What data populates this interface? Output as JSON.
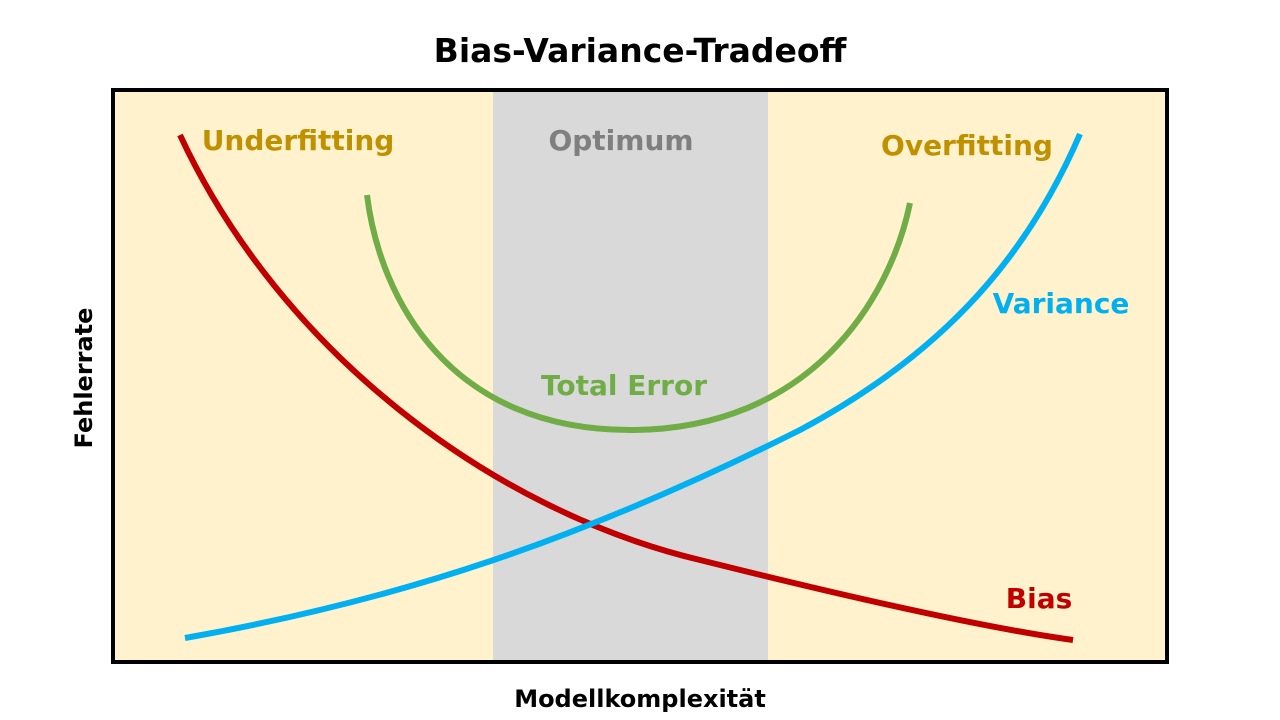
{
  "title": "Bias-Variance-Tradeoff",
  "x_axis_label": "Modellkomplexität",
  "y_axis_label": "Fehlerrate",
  "regions": [
    {
      "label": "Underfitting",
      "color": "#bf9000"
    },
    {
      "label": "Optimum",
      "color": "#7f7f7f"
    },
    {
      "label": "Overfitting",
      "color": "#bf9000"
    }
  ],
  "curves": {
    "bias": {
      "label": "Bias",
      "color": "#c00000"
    },
    "variance": {
      "label": "Variance",
      "color": "#00b0f0"
    },
    "total_error": {
      "label": "Total Error",
      "color": "#70ad47"
    }
  },
  "colors": {
    "region_background": "#fff2cc",
    "optimum_band": "#d9d9d9",
    "frame": "#000000"
  }
}
